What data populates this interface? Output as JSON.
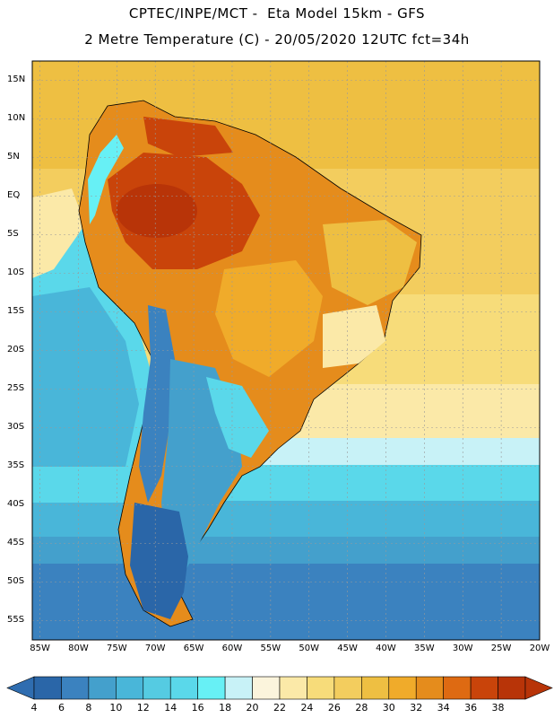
{
  "header": {
    "line1": "CPTEC/INPE/MCT -  Eta Model 15km - GFS",
    "line2": "2 Metre Temperature (C) - 20/05/2020 12UTC fct=34h"
  },
  "map": {
    "region": "South America",
    "lat_labels": [
      "15N",
      "10N",
      "5N",
      "EQ",
      "5S",
      "10S",
      "15S",
      "20S",
      "25S",
      "30S",
      "35S",
      "40S",
      "45S",
      "50S",
      "55S"
    ],
    "lon_labels": [
      "85W",
      "80W",
      "75W",
      "70W",
      "65W",
      "60W",
      "55W",
      "50W",
      "45W",
      "40W",
      "35W",
      "30W",
      "25W",
      "20W"
    ],
    "lat_range": [
      17.5,
      -57.5
    ],
    "lon_range": [
      -86,
      -20
    ]
  },
  "colorbar": {
    "labels": [
      "4",
      "6",
      "8",
      "10",
      "12",
      "14",
      "16",
      "18",
      "20",
      "22",
      "24",
      "26",
      "28",
      "30",
      "32",
      "34",
      "36",
      "38"
    ],
    "colors": [
      "#2a66a8",
      "#3b82bf",
      "#44a0cc",
      "#49b6d9",
      "#55cbe2",
      "#5ad8ea",
      "#67f0f5",
      "#c8f2f7",
      "#fbf4dc",
      "#fbe9a8",
      "#f7dc7a",
      "#f3cd5e",
      "#eebf42",
      "#f0ab2a",
      "#e58c1c",
      "#de6a12",
      "#c9440a",
      "#b83408"
    ],
    "low_color": "#2f6db0",
    "high_color": "#b83408"
  }
}
